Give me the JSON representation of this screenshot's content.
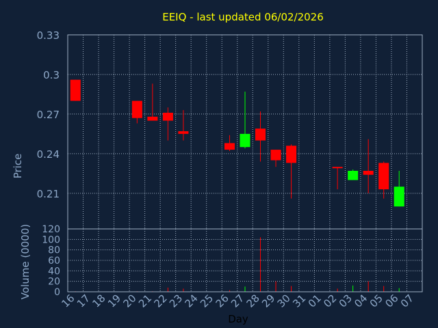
{
  "chart_data": {
    "type": "candlestick",
    "title": "EEIQ - last updated 06/02/2026",
    "colors": {
      "background": "#112036",
      "grid": "#9fb0c4",
      "axis_text": "#8ea8c8",
      "title": "#ffff00",
      "up": "#00ff00",
      "down": "#ff0000"
    },
    "x_categories": [
      "16",
      "17",
      "18",
      "19",
      "20",
      "21",
      "22",
      "23",
      "24",
      "25",
      "26",
      "27",
      "28",
      "29",
      "30",
      "31",
      "01",
      "02",
      "03",
      "04",
      "05",
      "06",
      "07"
    ],
    "xlabel": "Day",
    "price_panel": {
      "ylabel": "Price",
      "ylim": [
        0.183,
        0.33
      ],
      "yticks": [
        {
          "value": 0.33,
          "label": "0.33"
        },
        {
          "value": 0.3,
          "label": "0.3"
        },
        {
          "value": 0.27,
          "label": "0.27"
        },
        {
          "value": 0.24,
          "label": "0.24"
        },
        {
          "value": 0.21,
          "label": "0.21"
        }
      ],
      "candles": [
        {
          "x": "16",
          "open": 0.296,
          "high": 0.296,
          "low": 0.28,
          "close": 0.28
        },
        {
          "x": "20",
          "open": 0.28,
          "high": 0.28,
          "low": 0.263,
          "close": 0.267
        },
        {
          "x": "21",
          "open": 0.268,
          "high": 0.293,
          "low": 0.265,
          "close": 0.265
        },
        {
          "x": "22",
          "open": 0.271,
          "high": 0.275,
          "low": 0.25,
          "close": 0.265
        },
        {
          "x": "23",
          "open": 0.257,
          "high": 0.273,
          "low": 0.25,
          "close": 0.255
        },
        {
          "x": "26",
          "open": 0.248,
          "high": 0.254,
          "low": 0.242,
          "close": 0.243
        },
        {
          "x": "27",
          "open": 0.245,
          "high": 0.287,
          "low": 0.244,
          "close": 0.255
        },
        {
          "x": "28",
          "open": 0.259,
          "high": 0.272,
          "low": 0.234,
          "close": 0.25
        },
        {
          "x": "29",
          "open": 0.243,
          "high": 0.243,
          "low": 0.23,
          "close": 0.235
        },
        {
          "x": "30",
          "open": 0.246,
          "high": 0.247,
          "low": 0.206,
          "close": 0.233
        },
        {
          "x": "02",
          "open": 0.23,
          "high": 0.23,
          "low": 0.213,
          "close": 0.229
        },
        {
          "x": "03",
          "open": 0.22,
          "high": 0.228,
          "low": 0.22,
          "close": 0.227
        },
        {
          "x": "04",
          "open": 0.227,
          "high": 0.251,
          "low": 0.21,
          "close": 0.224
        },
        {
          "x": "05",
          "open": 0.233,
          "high": 0.234,
          "low": 0.206,
          "close": 0.213
        },
        {
          "x": "06",
          "open": 0.2,
          "high": 0.227,
          "low": 0.2,
          "close": 0.215
        }
      ]
    },
    "volume_panel": {
      "ylabel": "Volume (0000)",
      "ylim": [
        0,
        120
      ],
      "yticks": [
        {
          "value": 120,
          "label": "120"
        },
        {
          "value": 100,
          "label": "100"
        },
        {
          "value": 80,
          "label": "80"
        },
        {
          "value": 60,
          "label": "60"
        },
        {
          "value": 40,
          "label": "40"
        },
        {
          "value": 20,
          "label": "20"
        },
        {
          "value": 0,
          "label": "0"
        }
      ],
      "bars": [
        {
          "x": "16",
          "value": 1,
          "dir": "down"
        },
        {
          "x": "20",
          "value": 1,
          "dir": "down"
        },
        {
          "x": "21",
          "value": 1,
          "dir": "down"
        },
        {
          "x": "22",
          "value": 8,
          "dir": "down"
        },
        {
          "x": "23",
          "value": 6,
          "dir": "down"
        },
        {
          "x": "26",
          "value": 3,
          "dir": "down"
        },
        {
          "x": "27",
          "value": 10,
          "dir": "up"
        },
        {
          "x": "28",
          "value": 104,
          "dir": "down"
        },
        {
          "x": "29",
          "value": 20,
          "dir": "down"
        },
        {
          "x": "30",
          "value": 11,
          "dir": "down"
        },
        {
          "x": "02",
          "value": 6,
          "dir": "down"
        },
        {
          "x": "03",
          "value": 12,
          "dir": "up"
        },
        {
          "x": "04",
          "value": 20,
          "dir": "down"
        },
        {
          "x": "05",
          "value": 11,
          "dir": "down"
        },
        {
          "x": "06",
          "value": 7,
          "dir": "up"
        }
      ]
    }
  }
}
